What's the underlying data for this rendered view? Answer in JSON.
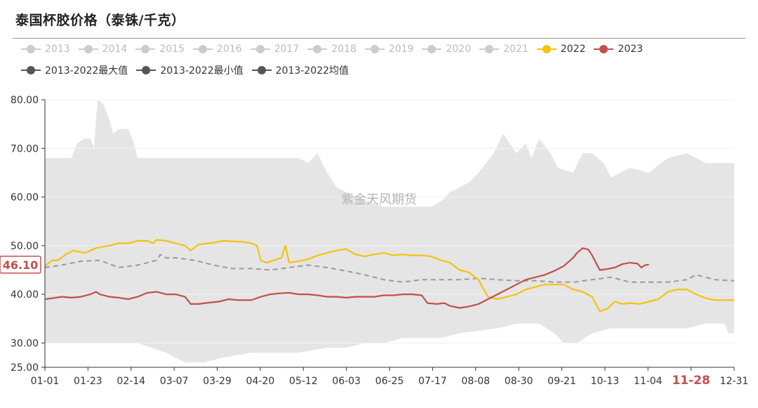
{
  "chart_data": {
    "type": "line",
    "title": "泰国杯胶价格（泰铢/千克）",
    "xlabel": "",
    "ylabel": "",
    "ylim": [
      25,
      80
    ],
    "yticks": [
      25,
      30,
      40,
      50,
      60,
      70,
      80
    ],
    "ytick_labels": [
      "25.00",
      "30.00",
      "40.00",
      "50.00",
      "60.00",
      "70.00",
      "80.00"
    ],
    "xticks": [
      "01-01",
      "01-23",
      "02-14",
      "03-07",
      "03-29",
      "04-20",
      "05-12",
      "06-03",
      "06-25",
      "07-17",
      "08-08",
      "08-30",
      "09-21",
      "10-13",
      "11-04",
      "11-28",
      "12-31"
    ],
    "highlighted_xtick": "11-28",
    "current_value_label": "46.10",
    "watermark": "紫金天风期货",
    "grid": true,
    "legend_position": "top",
    "legend": [
      {
        "name": "2013",
        "color": "#cccccc",
        "active": false
      },
      {
        "name": "2014",
        "color": "#cccccc",
        "active": false
      },
      {
        "name": "2015",
        "color": "#cccccc",
        "active": false
      },
      {
        "name": "2016",
        "color": "#cccccc",
        "active": false
      },
      {
        "name": "2017",
        "color": "#cccccc",
        "active": false
      },
      {
        "name": "2018",
        "color": "#cccccc",
        "active": false
      },
      {
        "name": "2019",
        "color": "#cccccc",
        "active": false
      },
      {
        "name": "2020",
        "color": "#cccccc",
        "active": false
      },
      {
        "name": "2021",
        "color": "#cccccc",
        "active": false
      },
      {
        "name": "2022",
        "color": "#f5c20f",
        "active": true
      },
      {
        "name": "2023",
        "color": "#c0504d",
        "active": true
      },
      {
        "name": "2013-2022最大值",
        "color": "#555555",
        "active": true
      },
      {
        "name": "2013-2022最小值",
        "color": "#555555",
        "active": true
      },
      {
        "name": "2013-2022均值",
        "color": "#555555",
        "active": true
      }
    ],
    "series": [
      {
        "name": "2013-2022最大值",
        "style": "band-upper",
        "color": "#e5e5e5",
        "points": [
          [
            1,
            68
          ],
          [
            15,
            68
          ],
          [
            18,
            71
          ],
          [
            22,
            72
          ],
          [
            25,
            72
          ],
          [
            27,
            70
          ],
          [
            28,
            76
          ],
          [
            29,
            80
          ],
          [
            32,
            79
          ],
          [
            35,
            76
          ],
          [
            37,
            73
          ],
          [
            40,
            74
          ],
          [
            45,
            74
          ],
          [
            48,
            71
          ],
          [
            50,
            68
          ],
          [
            60,
            68
          ],
          [
            90,
            68
          ],
          [
            115,
            68
          ],
          [
            135,
            68
          ],
          [
            140,
            67
          ],
          [
            145,
            69
          ],
          [
            150,
            65
          ],
          [
            155,
            62
          ],
          [
            165,
            60
          ],
          [
            180,
            58
          ],
          [
            195,
            58
          ],
          [
            205,
            58
          ],
          [
            210,
            59
          ],
          [
            215,
            61
          ],
          [
            225,
            63
          ],
          [
            230,
            65
          ],
          [
            238,
            69
          ],
          [
            243,
            73
          ],
          [
            250,
            69
          ],
          [
            255,
            71
          ],
          [
            258,
            68
          ],
          [
            262,
            72
          ],
          [
            268,
            69
          ],
          [
            272,
            66
          ],
          [
            280,
            65
          ],
          [
            285,
            69
          ],
          [
            290,
            69
          ],
          [
            296,
            67
          ],
          [
            300,
            64
          ],
          [
            310,
            66
          ],
          [
            320,
            65
          ],
          [
            330,
            68
          ],
          [
            340,
            69
          ],
          [
            345,
            68
          ],
          [
            350,
            67
          ],
          [
            365,
            67
          ]
        ]
      },
      {
        "name": "2013-2022最小值",
        "style": "band-lower",
        "color": "#e5e5e5",
        "points": [
          [
            1,
            30
          ],
          [
            15,
            30
          ],
          [
            25,
            30
          ],
          [
            35,
            30
          ],
          [
            50,
            30
          ],
          [
            65,
            28
          ],
          [
            75,
            26
          ],
          [
            85,
            26
          ],
          [
            95,
            27
          ],
          [
            110,
            28
          ],
          [
            120,
            28
          ],
          [
            135,
            28
          ],
          [
            150,
            29
          ],
          [
            160,
            29
          ],
          [
            170,
            30
          ],
          [
            180,
            30
          ],
          [
            190,
            31
          ],
          [
            200,
            31
          ],
          [
            210,
            31
          ],
          [
            220,
            32
          ],
          [
            240,
            33
          ],
          [
            250,
            34
          ],
          [
            262,
            34
          ],
          [
            270,
            32
          ],
          [
            275,
            30
          ],
          [
            282,
            30
          ],
          [
            290,
            32
          ],
          [
            300,
            33
          ],
          [
            310,
            33
          ],
          [
            320,
            33
          ],
          [
            330,
            33
          ],
          [
            340,
            33
          ],
          [
            350,
            34
          ],
          [
            360,
            34
          ],
          [
            362,
            32
          ],
          [
            365,
            32
          ]
        ]
      },
      {
        "name": "2013-2022均值",
        "style": "dashed",
        "color": "#9a9a9a",
        "points": [
          [
            1,
            45.5
          ],
          [
            10,
            46
          ],
          [
            20,
            46.8
          ],
          [
            30,
            47
          ],
          [
            40,
            45.5
          ],
          [
            50,
            46
          ],
          [
            55,
            46.5
          ],
          [
            60,
            47
          ],
          [
            62,
            48.2
          ],
          [
            65,
            47.5
          ],
          [
            70,
            47.5
          ],
          [
            80,
            47
          ],
          [
            90,
            46
          ],
          [
            100,
            45.3
          ],
          [
            110,
            45.3
          ],
          [
            120,
            45
          ],
          [
            130,
            45.5
          ],
          [
            140,
            46
          ],
          [
            150,
            45.5
          ],
          [
            160,
            44.8
          ],
          [
            170,
            44
          ],
          [
            180,
            43
          ],
          [
            190,
            42.5
          ],
          [
            200,
            43
          ],
          [
            210,
            43
          ],
          [
            220,
            43
          ],
          [
            230,
            43.3
          ],
          [
            240,
            43
          ],
          [
            250,
            42.8
          ],
          [
            260,
            42.8
          ],
          [
            270,
            42.5
          ],
          [
            280,
            42.5
          ],
          [
            290,
            43
          ],
          [
            300,
            43.5
          ],
          [
            310,
            42.5
          ],
          [
            320,
            42.5
          ],
          [
            330,
            42.5
          ],
          [
            340,
            43
          ],
          [
            345,
            44
          ],
          [
            355,
            43
          ],
          [
            365,
            42.8
          ]
        ]
      },
      {
        "name": "2022",
        "style": "solid",
        "color": "#f5c20f",
        "points": [
          [
            1,
            45.8
          ],
          [
            5,
            47
          ],
          [
            8,
            47
          ],
          [
            12,
            48.2
          ],
          [
            16,
            49
          ],
          [
            22,
            48.5
          ],
          [
            28,
            49.5
          ],
          [
            35,
            50
          ],
          [
            40,
            50.5
          ],
          [
            45,
            50.5
          ],
          [
            50,
            51
          ],
          [
            55,
            51
          ],
          [
            58,
            50.5
          ],
          [
            60,
            51.2
          ],
          [
            65,
            51
          ],
          [
            70,
            50.5
          ],
          [
            75,
            50
          ],
          [
            78,
            49
          ],
          [
            82,
            50.2
          ],
          [
            90,
            50.6
          ],
          [
            95,
            51
          ],
          [
            105,
            50.8
          ],
          [
            110,
            50.5
          ],
          [
            113,
            50
          ],
          [
            115,
            47
          ],
          [
            118,
            46.5
          ],
          [
            122,
            47
          ],
          [
            126,
            47.5
          ],
          [
            128,
            50
          ],
          [
            130,
            46.5
          ],
          [
            135,
            46.8
          ],
          [
            140,
            47.2
          ],
          [
            145,
            48
          ],
          [
            150,
            48.5
          ],
          [
            155,
            49
          ],
          [
            160,
            49.3
          ],
          [
            165,
            48.2
          ],
          [
            170,
            47.8
          ],
          [
            175,
            48.2
          ],
          [
            180,
            48.5
          ],
          [
            185,
            48
          ],
          [
            190,
            48.2
          ],
          [
            195,
            48
          ],
          [
            200,
            48
          ],
          [
            205,
            47.8
          ],
          [
            210,
            47
          ],
          [
            215,
            46.5
          ],
          [
            220,
            45
          ],
          [
            225,
            44.5
          ],
          [
            230,
            43
          ],
          [
            232,
            41.5
          ],
          [
            235,
            39.5
          ],
          [
            240,
            39
          ],
          [
            245,
            39.5
          ],
          [
            250,
            40
          ],
          [
            255,
            41
          ],
          [
            260,
            41.5
          ],
          [
            265,
            42
          ],
          [
            270,
            42
          ],
          [
            275,
            42
          ],
          [
            280,
            41
          ],
          [
            285,
            40.5
          ],
          [
            290,
            39.5
          ],
          [
            292,
            38
          ],
          [
            294,
            36.5
          ],
          [
            298,
            37
          ],
          [
            302,
            38.5
          ],
          [
            306,
            38
          ],
          [
            310,
            38.2
          ],
          [
            315,
            38
          ],
          [
            320,
            38.5
          ],
          [
            325,
            39
          ],
          [
            330,
            40.5
          ],
          [
            335,
            41
          ],
          [
            340,
            41
          ],
          [
            345,
            40
          ],
          [
            350,
            39.2
          ],
          [
            355,
            38.8
          ],
          [
            365,
            38.8
          ]
        ]
      },
      {
        "name": "2023",
        "style": "solid",
        "color": "#c0504d",
        "points": [
          [
            1,
            39
          ],
          [
            5,
            39.2
          ],
          [
            10,
            39.5
          ],
          [
            15,
            39.3
          ],
          [
            20,
            39.5
          ],
          [
            25,
            40
          ],
          [
            28,
            40.5
          ],
          [
            30,
            40
          ],
          [
            35,
            39.5
          ],
          [
            40,
            39.3
          ],
          [
            45,
            39
          ],
          [
            50,
            39.5
          ],
          [
            55,
            40.3
          ],
          [
            60,
            40.5
          ],
          [
            65,
            40
          ],
          [
            70,
            40
          ],
          [
            75,
            39.5
          ],
          [
            78,
            38
          ],
          [
            82,
            38
          ],
          [
            88,
            38.3
          ],
          [
            93,
            38.5
          ],
          [
            98,
            39
          ],
          [
            103,
            38.8
          ],
          [
            110,
            38.8
          ],
          [
            115,
            39.5
          ],
          [
            120,
            40
          ],
          [
            125,
            40.2
          ],
          [
            130,
            40.3
          ],
          [
            135,
            40
          ],
          [
            140,
            40
          ],
          [
            145,
            39.8
          ],
          [
            150,
            39.5
          ],
          [
            155,
            39.5
          ],
          [
            160,
            39.3
          ],
          [
            165,
            39.5
          ],
          [
            170,
            39.5
          ],
          [
            175,
            39.5
          ],
          [
            180,
            39.8
          ],
          [
            185,
            39.8
          ],
          [
            190,
            40
          ],
          [
            195,
            40
          ],
          [
            200,
            39.8
          ],
          [
            203,
            38.2
          ],
          [
            208,
            38
          ],
          [
            212,
            38.2
          ],
          [
            215,
            37.6
          ],
          [
            220,
            37.2
          ],
          [
            225,
            37.5
          ],
          [
            230,
            38
          ],
          [
            235,
            39
          ],
          [
            240,
            40
          ],
          [
            245,
            41
          ],
          [
            250,
            42
          ],
          [
            255,
            43
          ],
          [
            260,
            43.5
          ],
          [
            265,
            44
          ],
          [
            270,
            44.8
          ],
          [
            275,
            45.8
          ],
          [
            280,
            47.5
          ],
          [
            282,
            48.5
          ],
          [
            285,
            49.5
          ],
          [
            288,
            49.2
          ],
          [
            290,
            48
          ],
          [
            292,
            46.5
          ],
          [
            294,
            45
          ],
          [
            298,
            45.2
          ],
          [
            302,
            45.5
          ],
          [
            306,
            46.2
          ],
          [
            310,
            46.5
          ],
          [
            314,
            46.3
          ],
          [
            316,
            45.5
          ],
          [
            318,
            46
          ],
          [
            320,
            46.1
          ]
        ]
      }
    ]
  }
}
